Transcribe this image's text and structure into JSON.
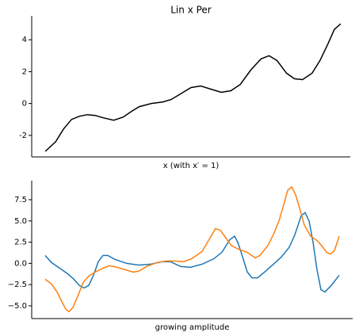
{
  "chart_data": [
    {
      "type": "line",
      "title": "Lin x Per",
      "xlabel": "x (with x′ = 1)",
      "xlim": [
        -17,
        383
      ],
      "ylim": [
        -3.35,
        5.5
      ],
      "yticks": [
        -2,
        0,
        2,
        4
      ],
      "series": [
        {
          "color": "#000000",
          "x": [
            0,
            13,
            23,
            33,
            43,
            53,
            63,
            73,
            86,
            98,
            108,
            118,
            133,
            148,
            158,
            168,
            183,
            195,
            208,
            221,
            233,
            245,
            258,
            271,
            281,
            291,
            303,
            313,
            323,
            335,
            345,
            355,
            363,
            371
          ],
          "values": [
            -3.0,
            -2.4,
            -1.6,
            -1.0,
            -0.8,
            -0.7,
            -0.75,
            -0.9,
            -1.05,
            -0.85,
            -0.5,
            -0.2,
            0.0,
            0.1,
            0.25,
            0.55,
            1.0,
            1.1,
            0.9,
            0.7,
            0.8,
            1.2,
            2.1,
            2.8,
            3.0,
            2.7,
            1.9,
            1.55,
            1.5,
            1.9,
            2.7,
            3.75,
            4.65,
            5.0
          ]
        }
      ]
    },
    {
      "type": "line",
      "xlabel": "growing amplitude",
      "xlim": [
        -17,
        388
      ],
      "ylim": [
        -6.5,
        9.74
      ],
      "yticks": [
        {
          "value": -5,
          "label": "−5.0"
        },
        {
          "value": -2.5,
          "label": "−2.5"
        },
        {
          "value": 0,
          "label": "0.0"
        },
        {
          "value": 2.5,
          "label": "2.5"
        },
        {
          "value": 5,
          "label": "5.0"
        },
        {
          "value": 7.5,
          "label": "7.5"
        }
      ],
      "series": [
        {
          "color": "#1f77b4",
          "x": [
            0,
            8,
            18,
            28,
            36,
            43,
            49,
            55,
            61,
            67,
            73,
            79,
            88,
            103,
            118,
            133,
            148,
            158,
            171,
            183,
            198,
            213,
            223,
            233,
            239,
            243,
            248,
            255,
            261,
            268,
            278,
            288,
            298,
            308,
            315,
            323,
            328,
            333,
            338,
            343,
            348,
            353,
            361,
            371
          ],
          "values": [
            0.93,
            0.1,
            -0.55,
            -1.2,
            -1.85,
            -2.6,
            -2.9,
            -2.6,
            -1.4,
            0.2,
            0.93,
            0.93,
            0.47,
            0.0,
            -0.2,
            -0.1,
            0.2,
            0.2,
            -0.37,
            -0.47,
            -0.1,
            0.56,
            1.3,
            2.8,
            3.2,
            2.5,
            1.1,
            -1.0,
            -1.7,
            -1.7,
            -0.93,
            -0.1,
            0.75,
            1.9,
            3.36,
            5.6,
            5.98,
            5.0,
            2.5,
            -0.75,
            -3.1,
            -3.36,
            -2.6,
            -1.4
          ]
        },
        {
          "color": "#ff7f0e",
          "x": [
            0,
            8,
            15,
            21,
            26,
            30,
            35,
            41,
            48,
            55,
            63,
            73,
            81,
            91,
            101,
            111,
            118,
            128,
            141,
            153,
            165,
            175,
            185,
            198,
            208,
            215,
            221,
            228,
            235,
            243,
            255,
            265,
            271,
            281,
            289,
            295,
            301,
            306,
            311,
            316,
            321,
            327,
            335,
            343,
            350,
            355,
            360,
            365,
            371
          ],
          "values": [
            -1.87,
            -2.43,
            -3.36,
            -4.5,
            -5.4,
            -5.7,
            -5.2,
            -3.9,
            -2.24,
            -1.5,
            -1.03,
            -0.56,
            -0.28,
            -0.47,
            -0.75,
            -1.03,
            -0.93,
            -0.37,
            0.1,
            0.28,
            0.28,
            0.2,
            0.56,
            1.4,
            3.0,
            4.1,
            3.9,
            3.0,
            2.1,
            1.7,
            1.3,
            0.65,
            0.93,
            2.1,
            3.6,
            5.0,
            6.9,
            8.6,
            9.0,
            8.1,
            6.5,
            4.5,
            3.2,
            2.7,
            1.96,
            1.3,
            1.1,
            1.5,
            3.2
          ]
        }
      ]
    }
  ]
}
